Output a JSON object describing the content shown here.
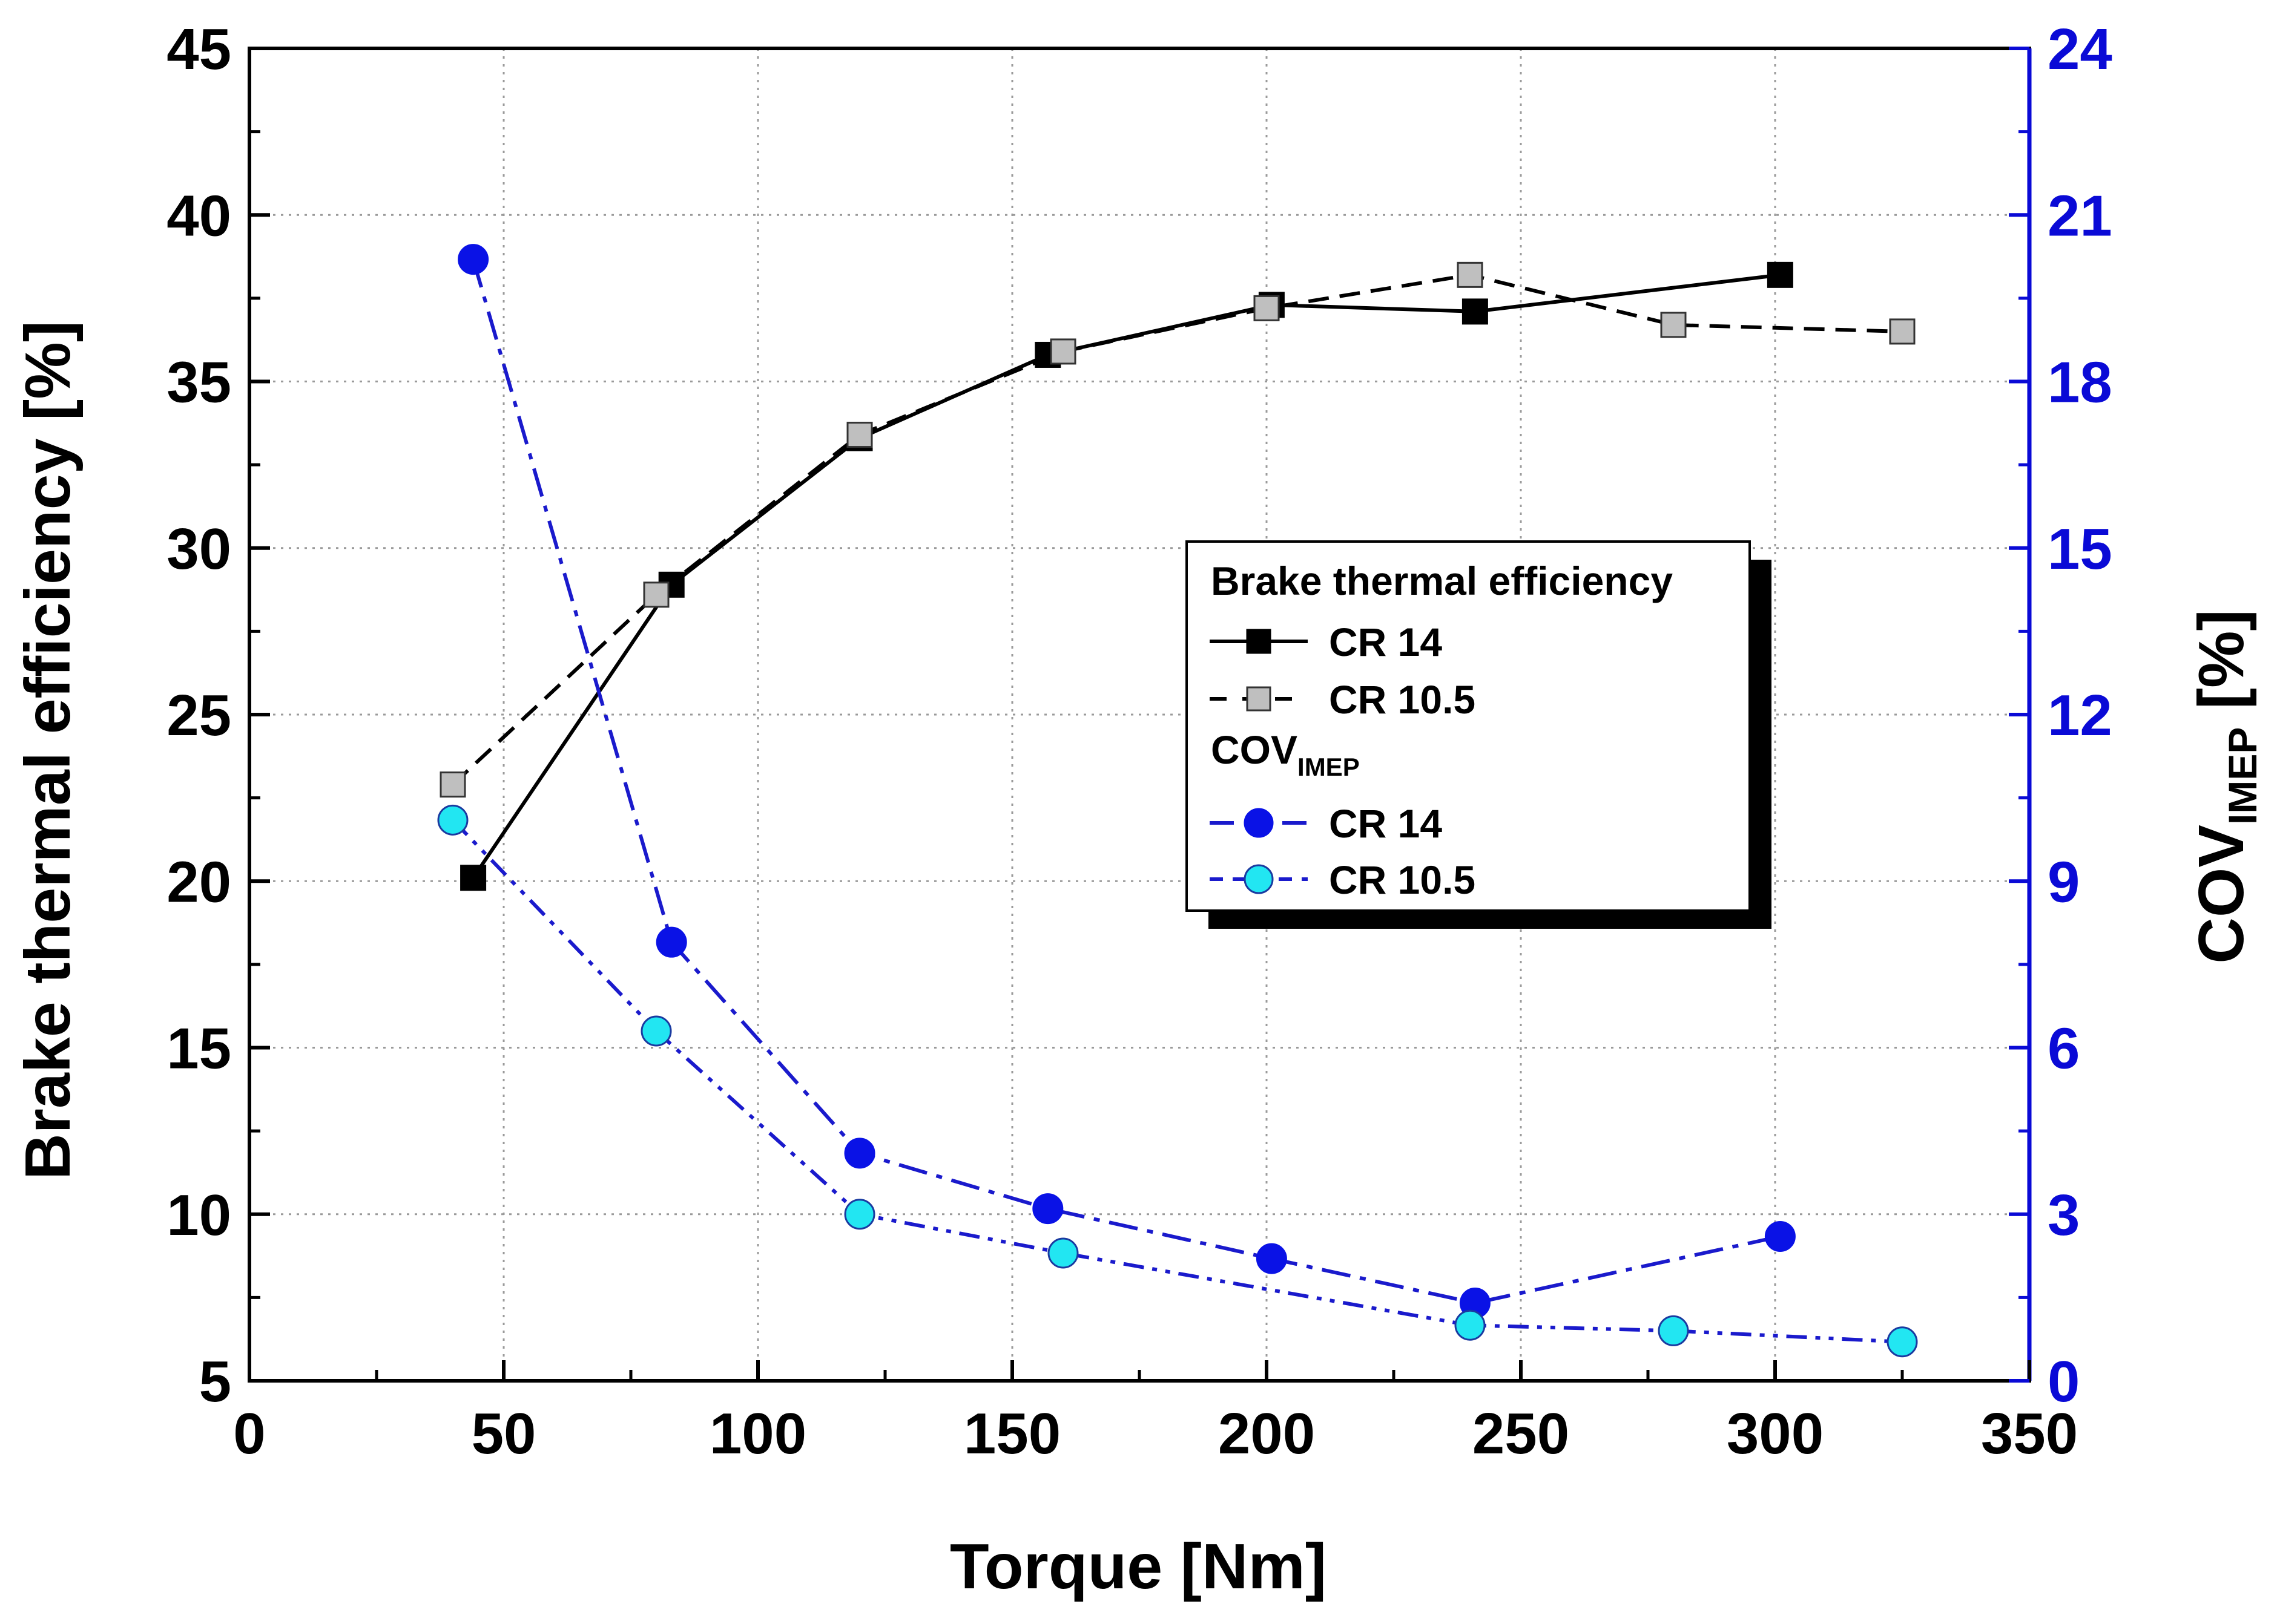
{
  "chart_data": {
    "type": "line",
    "title": "",
    "xlabel": "Torque [Nm]",
    "ylabel": "Brake thermal efficiency [%]",
    "ylabel_right": {
      "main": "COV",
      "sub": "IMEP",
      "suffix": " [%]"
    },
    "xlim": [
      0,
      350
    ],
    "ylim": [
      5,
      45
    ],
    "ylim_right": [
      0,
      24
    ],
    "x_ticks": [
      0,
      50,
      100,
      150,
      200,
      250,
      300,
      350
    ],
    "y_ticks": [
      5,
      10,
      15,
      20,
      25,
      30,
      35,
      40,
      45
    ],
    "y_ticks_right": [
      0,
      3,
      6,
      9,
      12,
      15,
      18,
      21,
      24
    ],
    "grid": true,
    "legend_position": "center-right",
    "legend": {
      "group1_title": "Brake thermal efficiency",
      "group2_title": {
        "main": "COV",
        "sub": "IMEP"
      }
    },
    "colors": {
      "bte_cr14": "#000000",
      "bte_cr105_fill": "#bfbfbf",
      "cov_line": "#1a1acc",
      "cov_cr14_fill": "#0a12e6",
      "cov_cr105_fill": "#22e6f2",
      "right_axis": "#0a0ad6"
    },
    "series": [
      {
        "name": "CR 14",
        "group": "Brake thermal efficiency",
        "axis": "left",
        "marker": "square",
        "line": "solid",
        "x": [
          44,
          83,
          120,
          157,
          201,
          241,
          301
        ],
        "y": [
          20.1,
          28.9,
          33.3,
          35.8,
          37.3,
          37.1,
          38.2
        ]
      },
      {
        "name": "CR 10.5",
        "group": "Brake thermal efficiency",
        "axis": "left",
        "marker": "square",
        "line": "dash",
        "x": [
          40,
          80,
          120,
          160,
          200,
          240,
          280,
          325
        ],
        "y": [
          22.9,
          28.6,
          33.4,
          35.9,
          37.2,
          38.2,
          36.7,
          36.5
        ]
      },
      {
        "name": "CR 14",
        "group": "COV_IMEP",
        "axis": "right",
        "marker": "circle",
        "line": "dashdot",
        "x": [
          44,
          83,
          120,
          157,
          201,
          241,
          301
        ],
        "y": [
          20.2,
          7.9,
          4.1,
          3.1,
          2.2,
          1.4,
          2.6
        ]
      },
      {
        "name": "CR 10.5",
        "group": "COV_IMEP",
        "axis": "right",
        "marker": "circle",
        "line": "dashdotdot",
        "x": [
          40,
          80,
          120,
          160,
          200,
          240,
          280,
          325
        ],
        "y": [
          10.1,
          6.3,
          3.0,
          2.3,
          null,
          1.0,
          0.9,
          0.7
        ]
      }
    ]
  }
}
